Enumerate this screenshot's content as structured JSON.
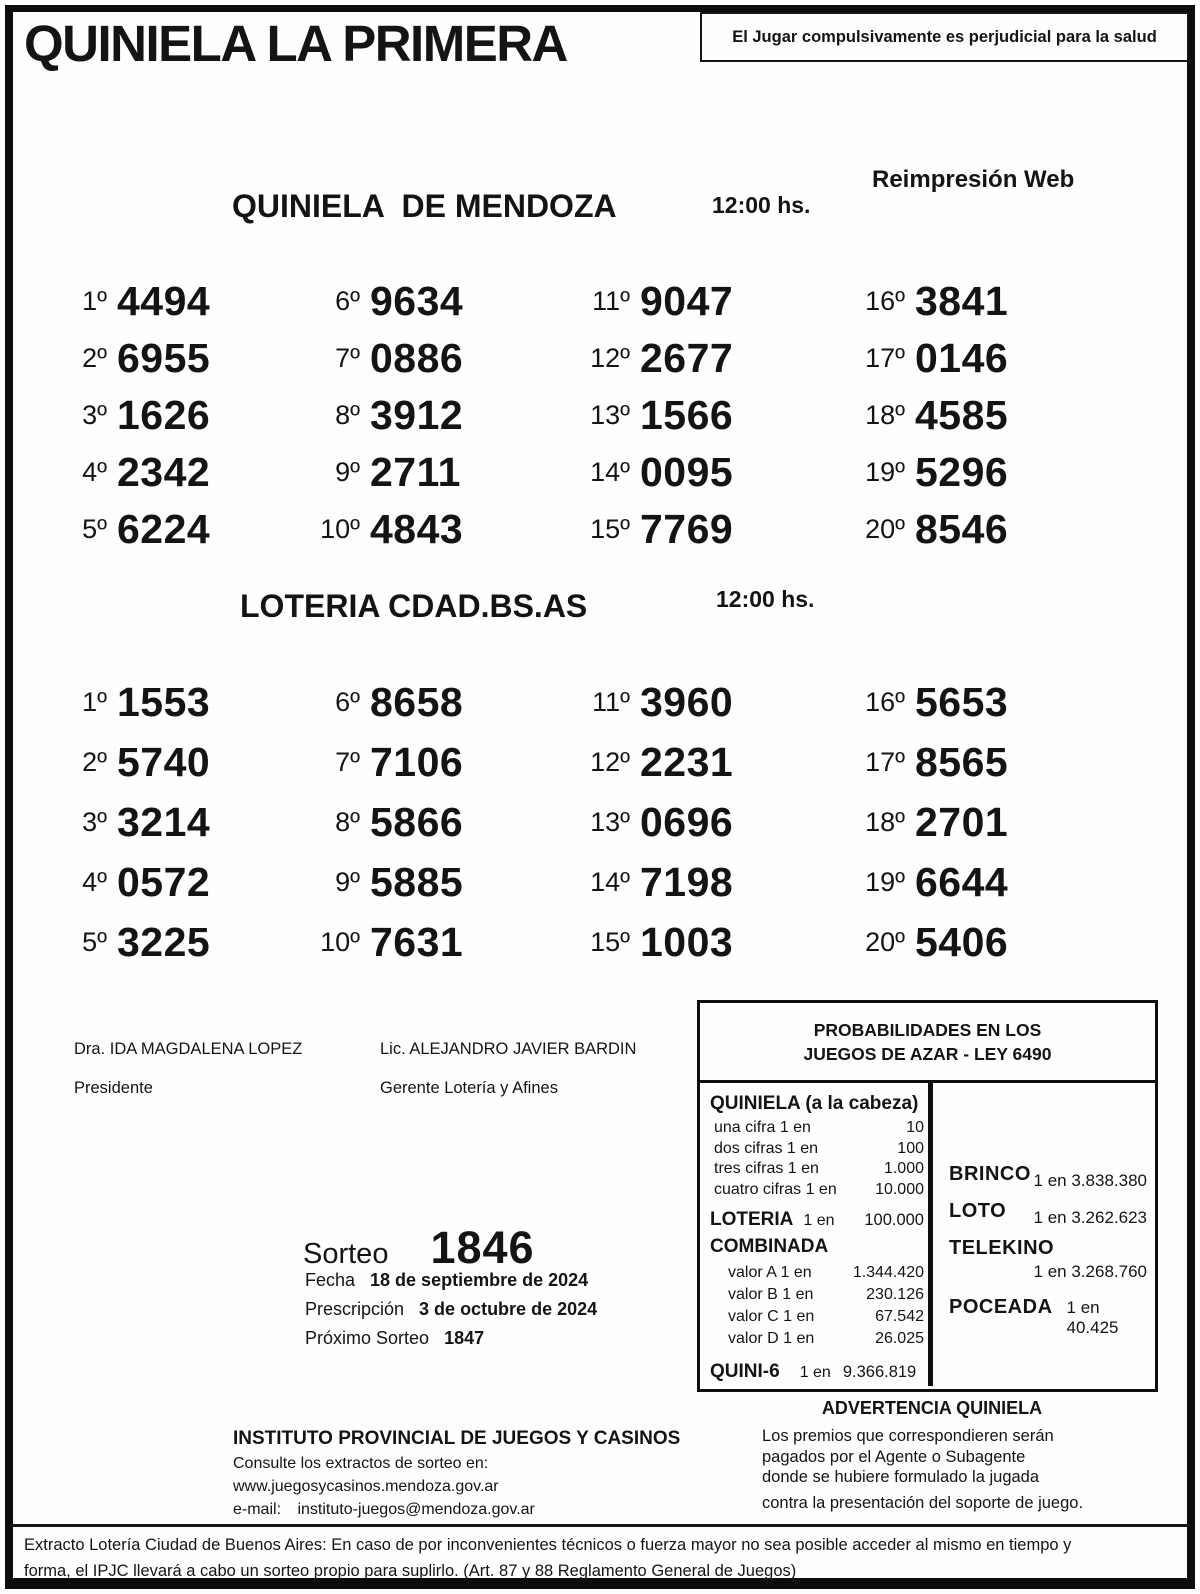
{
  "colors": {
    "ink": "#141414",
    "paper": "#fefefe"
  },
  "header": {
    "title": "QUINIELA LA PRIMERA",
    "warning": "El Jugar compulsivamente es perjudicial para la salud",
    "reprint": "Reimpresión Web"
  },
  "mendoza": {
    "title": "QUINIELA  DE MENDOZA",
    "time": "12:00 hs.",
    "columns": [
      [
        {
          "p": "1º",
          "n": "4494"
        },
        {
          "p": "2º",
          "n": "6955"
        },
        {
          "p": "3º",
          "n": "1626"
        },
        {
          "p": "4º",
          "n": "2342"
        },
        {
          "p": "5º",
          "n": "6224"
        }
      ],
      [
        {
          "p": "6º",
          "n": "9634"
        },
        {
          "p": "7º",
          "n": "0886"
        },
        {
          "p": "8º",
          "n": "3912"
        },
        {
          "p": "9º",
          "n": "2711"
        },
        {
          "p": "10º",
          "n": "4843"
        }
      ],
      [
        {
          "p": "11º",
          "n": "9047"
        },
        {
          "p": "12º",
          "n": "2677"
        },
        {
          "p": "13º",
          "n": "1566"
        },
        {
          "p": "14º",
          "n": "0095"
        },
        {
          "p": "15º",
          "n": "7769"
        }
      ],
      [
        {
          "p": "16º",
          "n": "3841"
        },
        {
          "p": "17º",
          "n": "0146"
        },
        {
          "p": "18º",
          "n": "4585"
        },
        {
          "p": "19º",
          "n": "5296"
        },
        {
          "p": "20º",
          "n": "8546"
        }
      ]
    ]
  },
  "bsas": {
    "title": "LOTERIA CDAD.BS.AS",
    "time": "12:00 hs.",
    "columns": [
      [
        {
          "p": "1º",
          "n": "1553"
        },
        {
          "p": "2º",
          "n": "5740"
        },
        {
          "p": "3º",
          "n": "3214"
        },
        {
          "p": "4º",
          "n": "0572"
        },
        {
          "p": "5º",
          "n": "3225"
        }
      ],
      [
        {
          "p": "6º",
          "n": "8658"
        },
        {
          "p": "7º",
          "n": "7106"
        },
        {
          "p": "8º",
          "n": "5866"
        },
        {
          "p": "9º",
          "n": "5885"
        },
        {
          "p": "10º",
          "n": "7631"
        }
      ],
      [
        {
          "p": "11º",
          "n": "3960"
        },
        {
          "p": "12º",
          "n": "2231"
        },
        {
          "p": "13º",
          "n": "0696"
        },
        {
          "p": "14º",
          "n": "7198"
        },
        {
          "p": "15º",
          "n": "1003"
        }
      ],
      [
        {
          "p": "16º",
          "n": "5653"
        },
        {
          "p": "17º",
          "n": "8565"
        },
        {
          "p": "18º",
          "n": "2701"
        },
        {
          "p": "19º",
          "n": "6644"
        },
        {
          "p": "20º",
          "n": "5406"
        }
      ]
    ]
  },
  "signatures": [
    {
      "name": "Dra. IDA MAGDALENA LOPEZ",
      "role": "Presidente"
    },
    {
      "name": "Lic. ALEJANDRO JAVIER BARDIN",
      "role": "Gerente Lotería y Afines"
    }
  ],
  "draw_info": {
    "sorteo_label": "Sorteo",
    "sorteo_number": "1846",
    "fecha_label": "Fecha",
    "fecha_value": "18 de septiembre de 2024",
    "prescripcion_label": "Prescripción",
    "prescripcion_value": "3 de octubre de 2024",
    "proximo_label": "Próximo Sorteo",
    "proximo_value": "1847"
  },
  "probabilities": {
    "title_line1": "PROBABILIDADES EN LOS",
    "title_line2": "JUEGOS DE AZAR - LEY 6490",
    "quiniela": {
      "heading": "QUINIELA (a la cabeza)",
      "rows": [
        {
          "label": "una cifra  1 en",
          "value": "10"
        },
        {
          "label": "dos cifras 1 en",
          "value": "100"
        },
        {
          "label": "tres cifras 1 en",
          "value": "1.000"
        },
        {
          "label": "cuatro cifras 1 en",
          "value": "10.000"
        }
      ]
    },
    "loteria": {
      "label": "LOTERIA",
      "mid": "1 en",
      "value": "100.000"
    },
    "combinada": {
      "heading": "COMBINADA",
      "rows": [
        {
          "label": "valor A 1 en",
          "value": "1.344.420"
        },
        {
          "label": "valor B 1 en",
          "value": "230.126"
        },
        {
          "label": "valor C 1 en",
          "value": "67.542"
        },
        {
          "label": "valor D 1 en",
          "value": "26.025"
        }
      ]
    },
    "quini6": {
      "label": "QUINI-6",
      "mid": "1 en",
      "value": "9.366.819"
    },
    "right": [
      {
        "name": "BRINCO",
        "value": "1 en 3.838.380"
      },
      {
        "name": "LOTO",
        "value": "1 en 3.262.623"
      },
      {
        "name": "TELEKINO",
        "value": "1 en 3.268.760"
      },
      {
        "name": "POCEADA",
        "value": "1 en 40.425"
      }
    ]
  },
  "advertencia": {
    "title": "ADVERTENCIA QUINIELA",
    "lines": [
      "Los premios que correspondieren serán",
      "pagados por el Agente o Subagente",
      "donde se hubiere formulado la jugada",
      "contra la presentación del soporte de juego."
    ]
  },
  "instituto": {
    "name": "INSTITUTO PROVINCIAL DE JUEGOS Y CASINOS",
    "consult": "Consulte los extractos de sorteo en:",
    "web": "www.juegosycasinos.mendoza.gov.ar",
    "email_label": "e-mail:",
    "email": "instituto-juegos@mendoza.gov.ar"
  },
  "footer": {
    "line1": "Extracto Lotería Ciudad de Buenos Aires: En caso de por inconvenientes técnicos o fuerza mayor no sea posible acceder al mismo en tiempo y",
    "line2": "forma, el IPJC llevará a cabo un sorteo propio para suplirlo. (Art. 87 y 88 Reglamento General de Juegos)"
  }
}
